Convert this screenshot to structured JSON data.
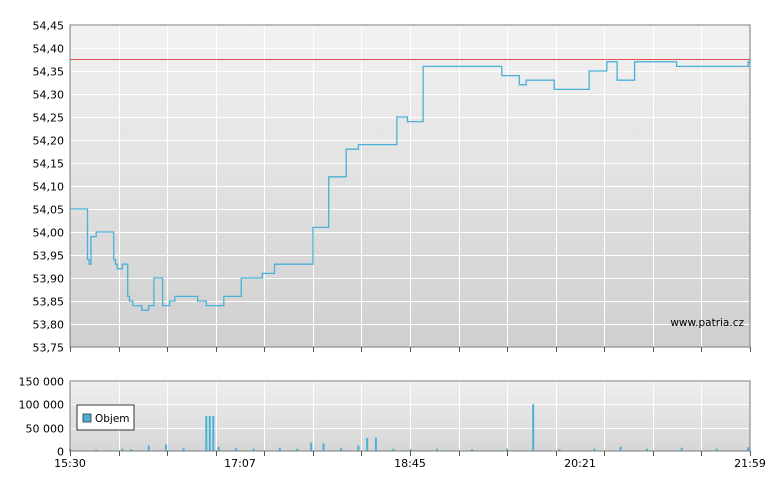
{
  "chart_data": [
    {
      "type": "line",
      "title": "",
      "xlabel": "",
      "ylabel": "",
      "ylim": [
        53.75,
        54.45
      ],
      "y_ticks": [
        "54,45",
        "54,40",
        "54,35",
        "54,30",
        "54,25",
        "54,20",
        "54,15",
        "54,10",
        "54,05",
        "54,00",
        "53,95",
        "53,90",
        "53,85",
        "53,80",
        "53,75"
      ],
      "x_tick_labels": [
        "15:30",
        "17:07",
        "18:45",
        "20:21",
        "21:59"
      ],
      "x_range": [
        "15:30",
        "21:59"
      ],
      "grid": true,
      "watermark": "www.patria.cz",
      "reference_line": {
        "value": 54.375,
        "color": "#e05050"
      },
      "line_color": "#4ab0d8",
      "series": [
        {
          "x": [
            "15:30",
            "15:38",
            "15:39",
            "15:40",
            "15:41",
            "15:42",
            "15:45",
            "15:54",
            "15:55",
            "15:56",
            "15:57",
            "16:00",
            "16:01",
            "16:03",
            "16:04",
            "16:06",
            "16:07",
            "16:11",
            "16:13",
            "16:14",
            "16:15",
            "16:18",
            "16:20",
            "16:23",
            "16:27",
            "16:30",
            "16:33",
            "16:35",
            "16:38",
            "16:43",
            "16:48",
            "16:53",
            "16:58",
            "17:01",
            "17:05",
            "17:08",
            "17:15",
            "17:20",
            "17:27",
            "17:35",
            "17:43",
            "17:49",
            "17:53",
            "17:58",
            "18:00",
            "18:08",
            "18:15",
            "18:20",
            "18:27",
            "18:37",
            "18:43",
            "18:48",
            "18:52",
            "18:58",
            "19:03",
            "19:09",
            "19:17",
            "19:27",
            "19:37",
            "19:47",
            "19:51",
            "19:53",
            "19:57",
            "19:59",
            "20:07",
            "20:17",
            "20:27",
            "20:31",
            "20:37",
            "20:43",
            "20:51",
            "20:53",
            "20:57",
            "20:59",
            "21:07",
            "21:17",
            "21:27",
            "21:35",
            "21:47",
            "21:57",
            "21:58",
            "21:59"
          ],
          "values": [
            54.05,
            54.05,
            54.05,
            53.94,
            53.93,
            53.99,
            54.0,
            54.0,
            53.94,
            53.93,
            53.92,
            53.93,
            53.93,
            53.86,
            53.85,
            53.84,
            53.84,
            53.83,
            53.83,
            53.83,
            53.84,
            53.9,
            53.9,
            53.84,
            53.85,
            53.86,
            53.86,
            53.86,
            53.86,
            53.85,
            53.84,
            53.84,
            53.86,
            53.86,
            53.86,
            53.9,
            53.9,
            53.91,
            53.93,
            53.93,
            53.93,
            54.01,
            54.01,
            54.12,
            54.12,
            54.18,
            54.19,
            54.19,
            54.19,
            54.25,
            54.24,
            54.24,
            54.36,
            54.36,
            54.36,
            54.36,
            54.36,
            54.36,
            54.34,
            54.32,
            54.33,
            54.33,
            54.33,
            54.33,
            54.31,
            54.31,
            54.35,
            54.35,
            54.37,
            54.33,
            54.33,
            54.37,
            54.37,
            54.37,
            54.37,
            54.36,
            54.36,
            54.36,
            54.36,
            54.36,
            54.37,
            54.375
          ]
        }
      ]
    },
    {
      "type": "bar",
      "title": "",
      "xlabel": "",
      "ylabel": "",
      "ylim": [
        0,
        150000
      ],
      "y_ticks": [
        "150 000",
        "100 000",
        "50 000",
        "0"
      ],
      "x_tick_labels": [
        "15:30",
        "17:07",
        "18:45",
        "20:21",
        "21:59"
      ],
      "grid": true,
      "bar_color": "#4ab0d8",
      "series": [
        {
          "name": "Objem",
          "x": [
            "15:30",
            "15:45",
            "16:00",
            "16:05",
            "16:15",
            "16:25",
            "16:35",
            "16:48",
            "16:50",
            "16:52",
            "16:55",
            "17:05",
            "17:15",
            "17:30",
            "17:40",
            "17:48",
            "17:55",
            "18:05",
            "18:15",
            "18:20",
            "18:25",
            "18:35",
            "18:45",
            "19:00",
            "19:20",
            "19:40",
            "19:55",
            "20:10",
            "20:30",
            "20:45",
            "21:00",
            "21:20",
            "21:40",
            "21:58"
          ],
          "values": [
            4000,
            3000,
            5000,
            4000,
            12000,
            14000,
            6000,
            75000,
            75000,
            75000,
            9000,
            6000,
            5000,
            7000,
            5000,
            18000,
            16000,
            6000,
            12000,
            28000,
            28000,
            5000,
            4000,
            5000,
            4000,
            5000,
            100000,
            4000,
            5000,
            9000,
            5000,
            7000,
            5000,
            8000
          ]
        }
      ]
    }
  ]
}
